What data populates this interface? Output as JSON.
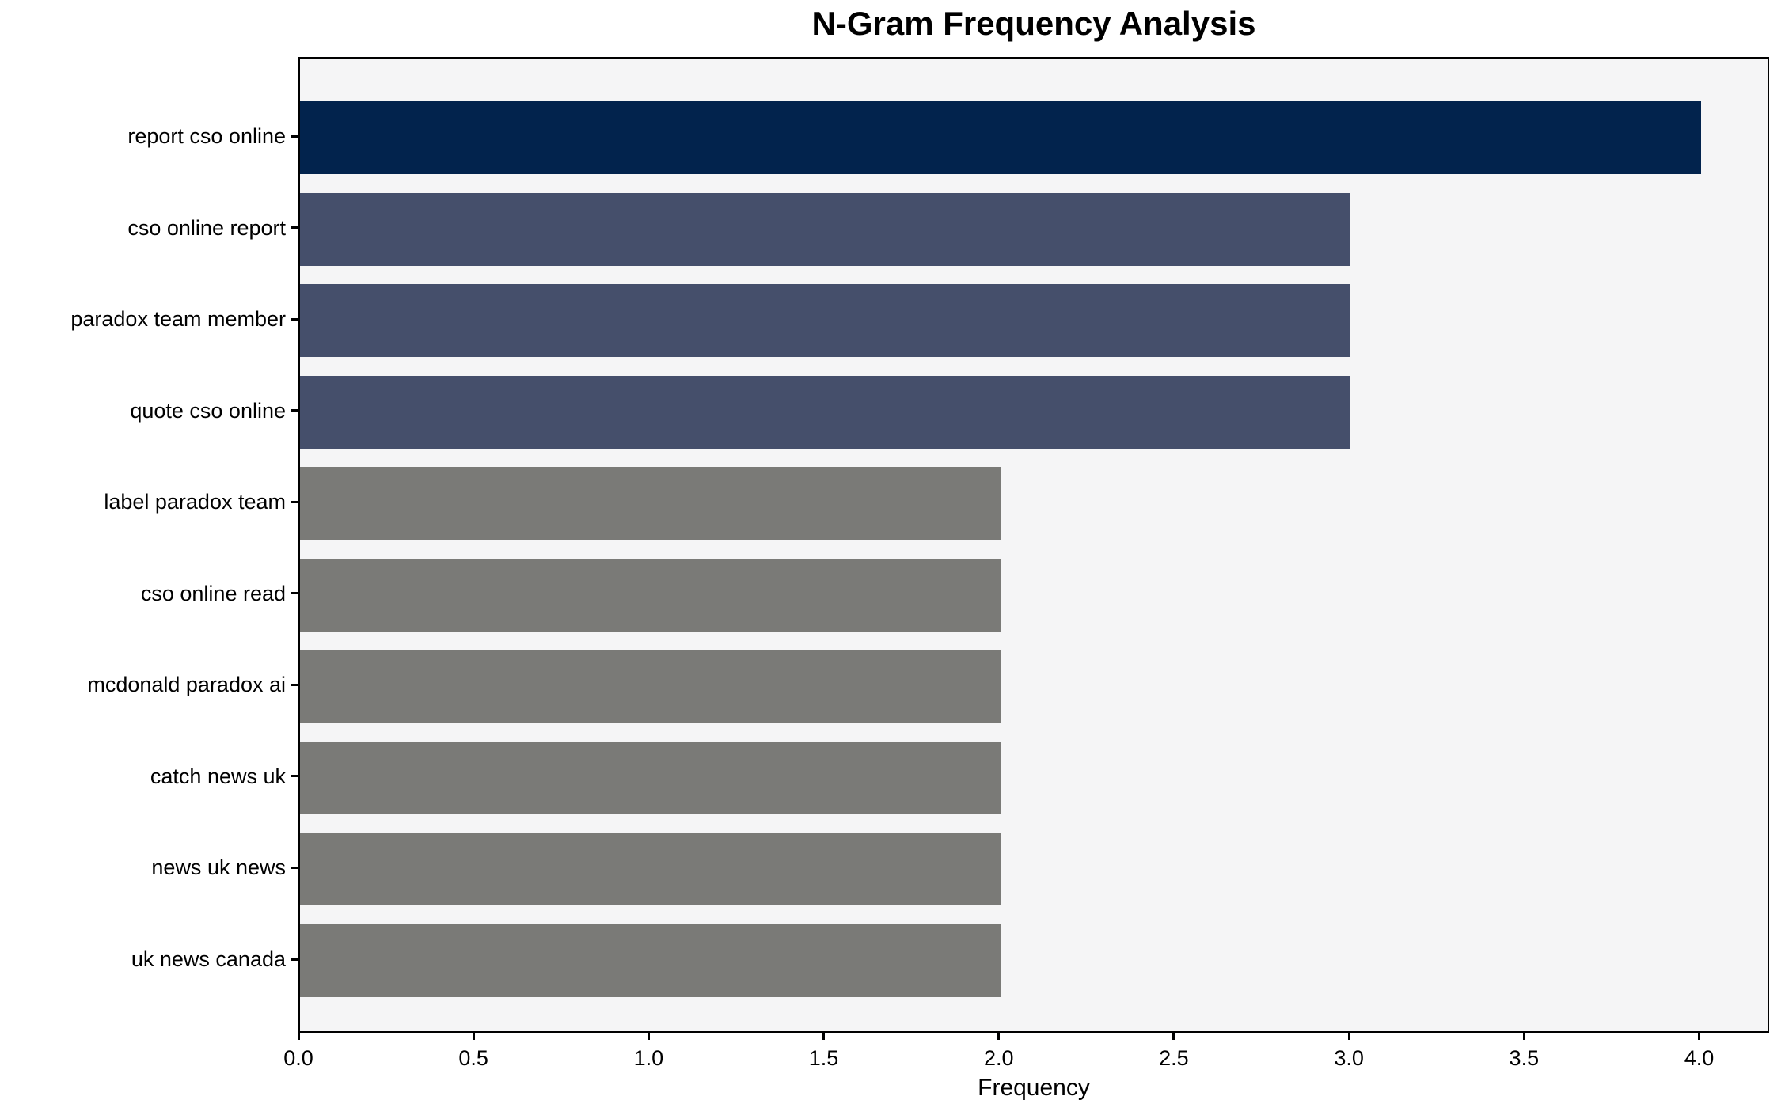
{
  "chart_data": {
    "type": "bar",
    "orientation": "horizontal",
    "title": "N-Gram Frequency Analysis",
    "xlabel": "Frequency",
    "ylabel": "",
    "categories": [
      "report cso online",
      "cso online report",
      "paradox team member",
      "quote cso online",
      "label paradox team",
      "cso online read",
      "mcdonald paradox ai",
      "catch news uk",
      "news uk news",
      "uk news canada"
    ],
    "values": [
      4,
      3,
      3,
      3,
      2,
      2,
      2,
      2,
      2,
      2
    ],
    "xlim": [
      0,
      4.2
    ],
    "xticks": [
      0.0,
      0.5,
      1.0,
      1.5,
      2.0,
      2.5,
      3.0,
      3.5,
      4.0
    ],
    "xtick_labels": [
      "0.0",
      "0.5",
      "1.0",
      "1.5",
      "2.0",
      "2.5",
      "3.0",
      "3.5",
      "4.0"
    ],
    "bar_colors": [
      "#02234d",
      "#454f6b",
      "#454f6b",
      "#454f6b",
      "#7a7a77",
      "#7a7a77",
      "#7a7a77",
      "#7a7a77",
      "#7a7a77",
      "#7a7a77"
    ],
    "grid": false,
    "legend_visible": false,
    "colors": {
      "plot_background": "#f5f5f6",
      "figure_background": "#ffffff",
      "axis_line": "#000000",
      "text": "#000000"
    }
  }
}
